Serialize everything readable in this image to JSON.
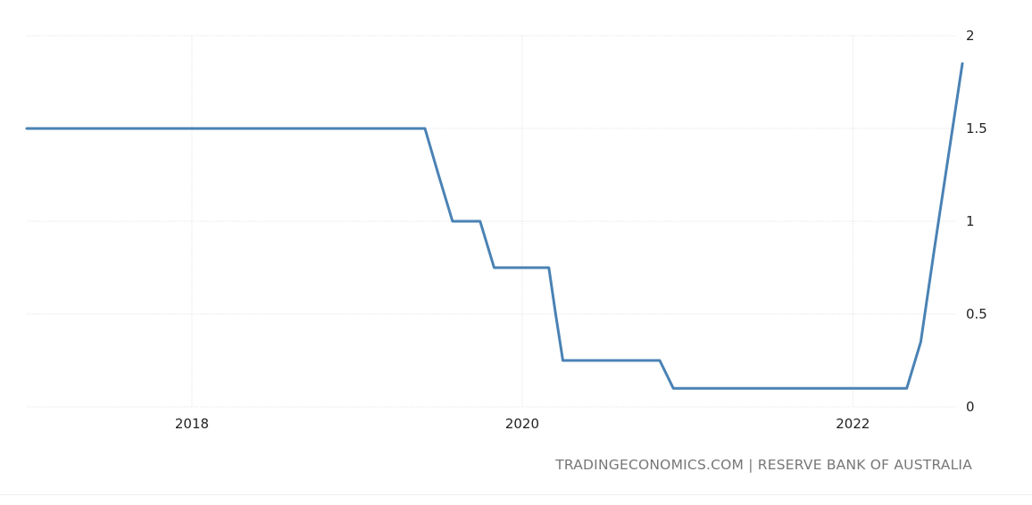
{
  "colors": {
    "series": "#4a82b4",
    "grid": "#e4e4e4",
    "text": "#222222",
    "source": "#777777"
  },
  "source_note": "TRADINGECONOMICS.COM | RESERVE BANK OF AUSTRALIA",
  "chart_data": {
    "type": "line",
    "title": "",
    "xlabel": "",
    "ylabel": "",
    "ylim": [
      0,
      2
    ],
    "xlim": [
      "2017-01-01",
      "2022-08-31"
    ],
    "y_ticks": [
      0,
      0.5,
      1,
      1.5,
      2
    ],
    "y_tick_labels": [
      "0",
      "0.5",
      "1",
      "1.5",
      "2"
    ],
    "x_ticks": [
      "2018-01-01",
      "2020-01-01",
      "2022-01-01"
    ],
    "x_tick_labels": [
      "2018",
      "2020",
      "2022"
    ],
    "y_axis_position": "right",
    "grid": true,
    "legend": "none",
    "series": [
      {
        "points": [
          [
            "2017-01-01",
            1.5
          ],
          [
            "2019-05-31",
            1.5
          ],
          [
            "2019-06-30",
            1.25
          ],
          [
            "2019-07-31",
            1.0
          ],
          [
            "2019-09-30",
            1.0
          ],
          [
            "2019-10-31",
            0.75
          ],
          [
            "2020-02-29",
            0.75
          ],
          [
            "2020-03-15",
            0.5
          ],
          [
            "2020-03-31",
            0.25
          ],
          [
            "2020-10-31",
            0.25
          ],
          [
            "2020-11-30",
            0.1
          ],
          [
            "2022-04-30",
            0.1
          ],
          [
            "2022-05-31",
            0.35
          ],
          [
            "2022-06-30",
            0.85
          ],
          [
            "2022-07-31",
            1.35
          ],
          [
            "2022-08-31",
            1.85
          ]
        ]
      }
    ]
  }
}
